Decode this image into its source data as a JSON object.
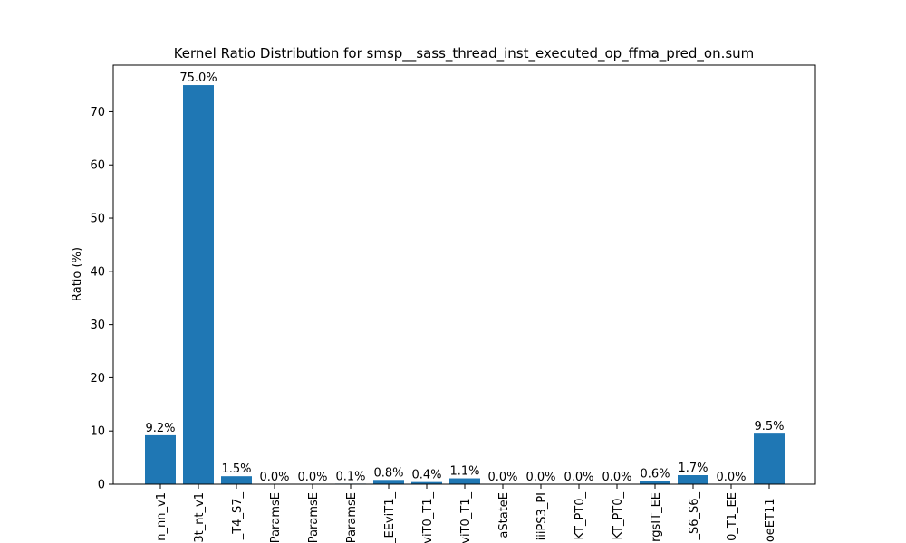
{
  "chart_data": {
    "type": "bar",
    "title": "Kernel Ratio Distribution for smsp__sass_thread_inst_executed_op_ffma_pred_on.sum",
    "xlabel": "",
    "ylabel": "Ratio (%)",
    "ylim": [
      0,
      78.75
    ],
    "yticks": [
      0,
      10,
      20,
      30,
      40,
      50,
      60,
      70
    ],
    "grid": false,
    "bar_color": "#1f77b4",
    "categories": [
      "n_nn_v1",
      "3t_nt_v1",
      "_T4_S7_",
      "ParamsE",
      "ParamsE",
      "ParamsE",
      "_EEviT1_",
      "viT0_T1_",
      "viT0_T1_",
      "aStateE",
      "iiiPS3_PI",
      "KT_PT0_",
      "KT_PT0_",
      "rgsIT_EE",
      "_S6_S6_",
      "0_T1_EE",
      "oeET11_"
    ],
    "values": [
      9.2,
      75.0,
      1.5,
      0.0,
      0.0,
      0.1,
      0.8,
      0.4,
      1.1,
      0.0,
      0.0,
      0.0,
      0.0,
      0.6,
      1.7,
      0.0,
      9.5
    ],
    "data_labels": [
      "9.2%",
      "75.0%",
      "1.5%",
      "0.0%",
      "0.0%",
      "0.1%",
      "0.8%",
      "0.4%",
      "1.1%",
      "0.0%",
      "0.0%",
      "0.0%",
      "0.0%",
      "0.6%",
      "1.7%",
      "0.0%",
      "9.5%"
    ]
  }
}
